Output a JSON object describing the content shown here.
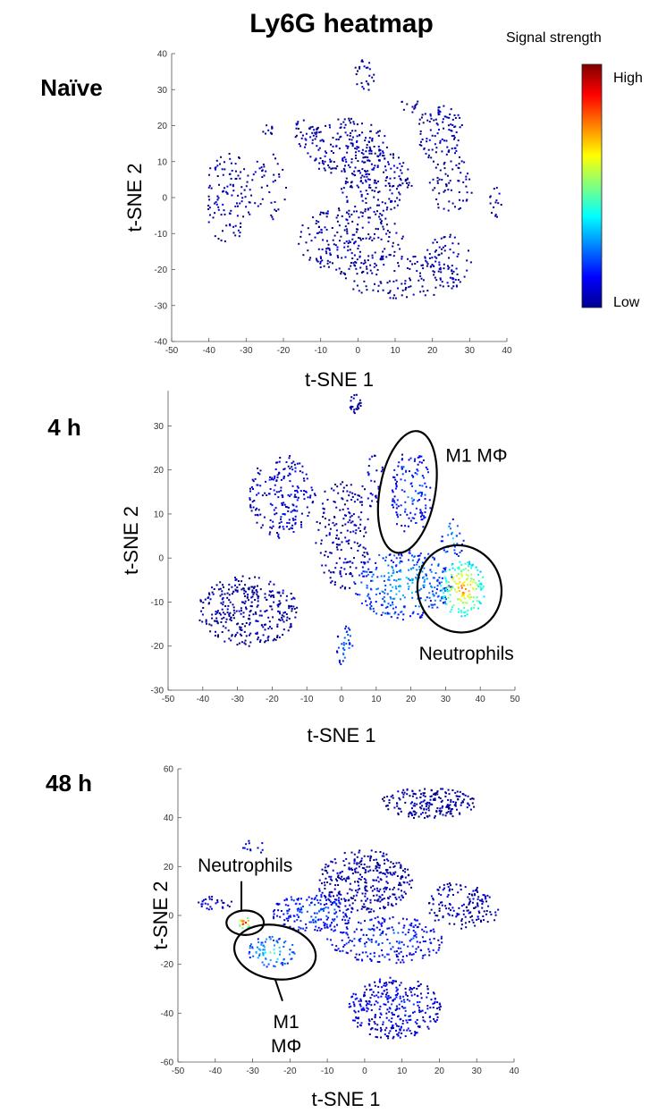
{
  "figure": {
    "title": "Ly6G heatmap",
    "colorbar": {
      "title": "Signal strength",
      "high_label": "High",
      "low_label": "Low",
      "colormap": "jet"
    }
  },
  "chart_data": [
    {
      "type": "scatter",
      "panel_label": "Naïve",
      "xlabel": "t-SNE 1",
      "ylabel": "t-SNE 2",
      "xlim": [
        -50,
        40
      ],
      "ylim": [
        -40,
        40
      ],
      "xticks": [
        "-50",
        "-40",
        "-30",
        "-20",
        "-10",
        "0",
        "10",
        "20",
        "30",
        "40"
      ],
      "yticks": [
        "40",
        "30",
        "20",
        "10",
        "0",
        "-10",
        "-20",
        "-30",
        "-40"
      ],
      "clusters": [
        {
          "cx": -3,
          "cy": 14,
          "sx": 7,
          "sy": 5,
          "n": 170,
          "level": 0.05
        },
        {
          "cx": 5,
          "cy": 4,
          "sx": 6,
          "sy": 6,
          "n": 170,
          "level": 0.05
        },
        {
          "cx": -2,
          "cy": -12,
          "sx": 9,
          "sy": 6,
          "n": 210,
          "level": 0.05
        },
        {
          "cx": 12,
          "cy": -22,
          "sx": 10,
          "sy": 4,
          "n": 120,
          "level": 0.05
        },
        {
          "cx": 22,
          "cy": 18,
          "sx": 4,
          "sy": 5,
          "n": 90,
          "level": 0.06
        },
        {
          "cx": 25,
          "cy": 5,
          "sx": 4,
          "sy": 6,
          "n": 70,
          "level": 0.05
        },
        {
          "cx": 24,
          "cy": -18,
          "sx": 4,
          "sy": 5,
          "n": 70,
          "level": 0.05
        },
        {
          "cx": -35,
          "cy": 0,
          "sx": 4,
          "sy": 8,
          "n": 110,
          "level": 0.05
        },
        {
          "cx": -24,
          "cy": 3,
          "sx": 3,
          "sy": 6,
          "n": 40,
          "level": 0.05
        },
        {
          "cx": -14,
          "cy": 18,
          "sx": 2,
          "sy": 3,
          "n": 30,
          "level": 0.05
        },
        {
          "cx": 2,
          "cy": 34,
          "sx": 2,
          "sy": 3,
          "n": 25,
          "level": 0.05
        },
        {
          "cx": -24,
          "cy": 19,
          "sx": 1,
          "sy": 1,
          "n": 10,
          "level": 0.05
        },
        {
          "cx": 37,
          "cy": -1,
          "sx": 1,
          "sy": 3,
          "n": 15,
          "level": 0.05
        },
        {
          "cx": 14,
          "cy": 26,
          "sx": 1.5,
          "sy": 1.5,
          "n": 12,
          "level": 0.05
        }
      ],
      "annotations": []
    },
    {
      "type": "scatter",
      "panel_label": "4 h",
      "xlabel": "t-SNE 1",
      "ylabel": "t-SNE 2",
      "xlim": [
        -50,
        50
      ],
      "ylim": [
        -30,
        38
      ],
      "xticks": [
        "-50",
        "-40",
        "-30",
        "-20",
        "-10",
        "0",
        "10",
        "20",
        "30",
        "40",
        "50"
      ],
      "yticks": [
        "30",
        "20",
        "10",
        "0",
        "-10",
        "-20",
        "-30"
      ],
      "clusters": [
        {
          "cx": -27,
          "cy": -12,
          "sx": 9,
          "sy": 5,
          "n": 330,
          "level": 0.04
        },
        {
          "cx": -17,
          "cy": 14,
          "sx": 6,
          "sy": 6,
          "n": 200,
          "level": 0.12
        },
        {
          "cx": 0,
          "cy": 5,
          "sx": 5,
          "sy": 8,
          "n": 180,
          "level": 0.05
        },
        {
          "cx": 18,
          "cy": -6,
          "sx": 9,
          "sy": 5,
          "n": 300,
          "level": 0.32
        },
        {
          "cx": 35,
          "cy": -7,
          "sx": 4,
          "sy": 4,
          "n": 160,
          "level": 0.75
        },
        {
          "cx": 20,
          "cy": 15,
          "sx": 4,
          "sy": 6,
          "n": 130,
          "level": 0.22
        },
        {
          "cx": 4,
          "cy": 35,
          "sx": 1,
          "sy": 1.5,
          "n": 25,
          "level": 0.05
        },
        {
          "cx": 1,
          "cy": -20,
          "sx": 1.5,
          "sy": 3,
          "n": 35,
          "level": 0.28
        },
        {
          "cx": 32,
          "cy": 4,
          "sx": 2,
          "sy": 3,
          "n": 30,
          "level": 0.3
        },
        {
          "cx": 9,
          "cy": 18,
          "sx": 2,
          "sy": 4,
          "n": 30,
          "level": 0.1
        }
      ],
      "annotations": [
        {
          "label": "M1 MΦ",
          "ellipse": [
            19,
            15,
            8,
            14,
            10
          ],
          "text_at": [
            30,
            23
          ],
          "anchor": "start"
        },
        {
          "label": "Neutrophils",
          "ellipse": [
            34,
            -7,
            12,
            10,
            -25
          ],
          "text_at": [
            36,
            -22
          ],
          "anchor": "middle"
        }
      ]
    },
    {
      "type": "scatter",
      "panel_label": "48 h",
      "xlabel": "t-SNE 1",
      "ylabel": "t-SNE 2",
      "xlim": [
        -50,
        40
      ],
      "ylim": [
        -60,
        60
      ],
      "xticks": [
        "-50",
        "-40",
        "-30",
        "-20",
        "-10",
        "0",
        "10",
        "20",
        "30",
        "40"
      ],
      "yticks": [
        "60",
        "40",
        "20",
        "0",
        "-20",
        "-40",
        "-60"
      ],
      "clusters": [
        {
          "cx": 17,
          "cy": 46,
          "sx": 8,
          "sy": 4,
          "n": 200,
          "level": 0.03
        },
        {
          "cx": 0,
          "cy": 14,
          "sx": 8,
          "sy": 8,
          "n": 330,
          "level": 0.05
        },
        {
          "cx": -14,
          "cy": 1,
          "sx": 7,
          "sy": 5,
          "n": 180,
          "level": 0.22
        },
        {
          "cx": 6,
          "cy": -10,
          "sx": 10,
          "sy": 6,
          "n": 220,
          "level": 0.2
        },
        {
          "cx": 8,
          "cy": -38,
          "sx": 8,
          "sy": 8,
          "n": 320,
          "level": 0.14
        },
        {
          "cx": 25,
          "cy": 4,
          "sx": 5,
          "sy": 6,
          "n": 110,
          "level": 0.05
        },
        {
          "cx": -25,
          "cy": -15,
          "sx": 4,
          "sy": 4,
          "n": 80,
          "level": 0.4
        },
        {
          "cx": -32,
          "cy": -3,
          "sx": 1.2,
          "sy": 1.5,
          "n": 18,
          "level": 0.95
        },
        {
          "cx": -40,
          "cy": 5,
          "sx": 3,
          "sy": 2,
          "n": 30,
          "level": 0.1
        },
        {
          "cx": -30,
          "cy": 28,
          "sx": 2,
          "sy": 2,
          "n": 12,
          "level": 0.15
        },
        {
          "cx": 31,
          "cy": 3,
          "sx": 3,
          "sy": 5,
          "n": 40,
          "level": 0.08
        }
      ],
      "annotations": [
        {
          "label": "Neutrophils",
          "ellipse": [
            -32,
            -3,
            5,
            5,
            0
          ],
          "text_at": [
            -32,
            20
          ],
          "anchor": "middle",
          "leader_from": [
            -33,
            14
          ],
          "leader_to": [
            -33,
            2
          ]
        },
        {
          "label": "M1",
          "ellipse": [
            -24,
            -15,
            11,
            11,
            10
          ],
          "text_at": [
            -21,
            -44
          ],
          "anchor": "middle",
          "leader_from": [
            -24,
            -26
          ],
          "leader_to": [
            -22,
            -35
          ]
        },
        {
          "label": "MΦ",
          "ellipse": null,
          "text_at": [
            -21,
            -54
          ],
          "anchor": "middle"
        }
      ]
    }
  ]
}
